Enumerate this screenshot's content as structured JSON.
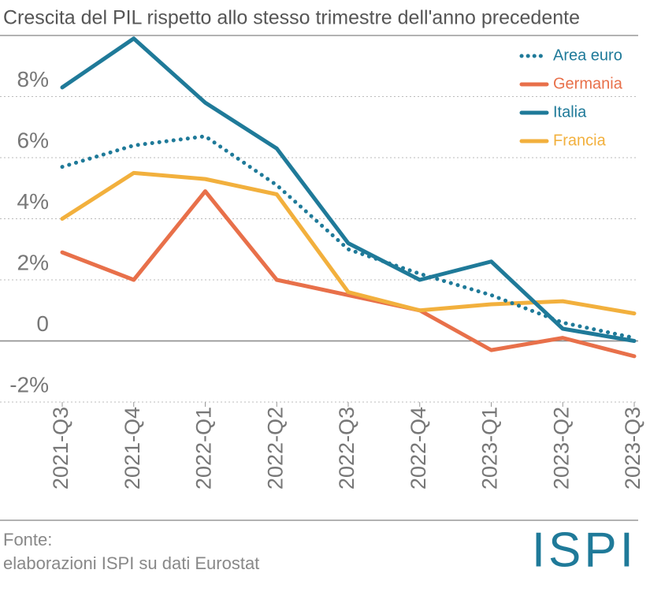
{
  "chart_data": {
    "type": "line",
    "title": "Crescita del PIL rispetto allo stesso trimestre dell'anno precedente",
    "categories": [
      "2021-Q3",
      "2021-Q4",
      "2022-Q1",
      "2022-Q2",
      "2022-Q3",
      "2022-Q4",
      "2023-Q1",
      "2023-Q2",
      "2023-Q3"
    ],
    "series": [
      {
        "name": "Area euro",
        "color": "#1f7a99",
        "dashed": true,
        "values": [
          5.7,
          6.4,
          6.7,
          5.1,
          3.0,
          2.2,
          1.5,
          0.6,
          0.1
        ]
      },
      {
        "name": "Germania",
        "color": "#e8704a",
        "values": [
          2.9,
          2.0,
          4.9,
          2.0,
          1.5,
          1.0,
          -0.3,
          0.1,
          -0.5
        ]
      },
      {
        "name": "Italia",
        "color": "#1f7a99",
        "values": [
          8.3,
          9.9,
          7.8,
          6.3,
          3.2,
          2.0,
          2.6,
          0.4,
          0.0
        ]
      },
      {
        "name": "Francia",
        "color": "#f2b03d",
        "values": [
          4.0,
          5.5,
          5.3,
          4.8,
          1.6,
          1.0,
          1.2,
          1.3,
          0.9
        ]
      }
    ],
    "ylim": [
      -2,
      10
    ],
    "yticks": [
      {
        "value": -2,
        "label": "-2%"
      },
      0,
      {
        "value": 2,
        "label": "2%"
      },
      {
        "value": 4,
        "label": "4%"
      },
      {
        "value": 6,
        "label": "6%"
      },
      {
        "value": 8,
        "label": "8%"
      }
    ],
    "grid": true,
    "legend": "top-right",
    "source": [
      "Fonte:",
      "elaborazioni ISPI su dati Eurostat"
    ],
    "logo": "ISPI"
  }
}
